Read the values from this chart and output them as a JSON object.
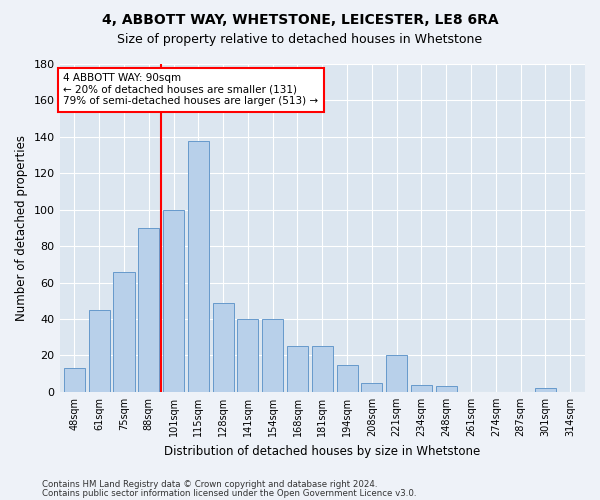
{
  "title1": "4, ABBOTT WAY, WHETSTONE, LEICESTER, LE8 6RA",
  "title2": "Size of property relative to detached houses in Whetstone",
  "xlabel": "Distribution of detached houses by size in Whetstone",
  "ylabel": "Number of detached properties",
  "bar_labels": [
    "48sqm",
    "61sqm",
    "75sqm",
    "88sqm",
    "101sqm",
    "115sqm",
    "128sqm",
    "141sqm",
    "154sqm",
    "168sqm",
    "181sqm",
    "194sqm",
    "208sqm",
    "221sqm",
    "234sqm",
    "248sqm",
    "261sqm",
    "274sqm",
    "287sqm",
    "301sqm",
    "314sqm"
  ],
  "bar_values": [
    13,
    45,
    66,
    90,
    100,
    138,
    49,
    40,
    40,
    25,
    25,
    15,
    5,
    20,
    4,
    3,
    0,
    0,
    0,
    2,
    0
  ],
  "bar_color": "#b8d0ea",
  "bar_edge_color": "#6699cc",
  "vline_x_idx": 3.5,
  "vline_color": "red",
  "annotation_line1": "4 ABBOTT WAY: 90sqm",
  "annotation_line2": "← 20% of detached houses are smaller (131)",
  "annotation_line3": "79% of semi-detached houses are larger (513) →",
  "annotation_box_color": "white",
  "annotation_box_edge_color": "red",
  "ylim": [
    0,
    180
  ],
  "yticks": [
    0,
    20,
    40,
    60,
    80,
    100,
    120,
    140,
    160,
    180
  ],
  "footer1": "Contains HM Land Registry data © Crown copyright and database right 2024.",
  "footer2": "Contains public sector information licensed under the Open Government Licence v3.0.",
  "bg_color": "#eef2f8",
  "plot_bg_color": "#dce6f0",
  "grid_color": "#ffffff",
  "title1_fontsize": 10,
  "title2_fontsize": 9
}
